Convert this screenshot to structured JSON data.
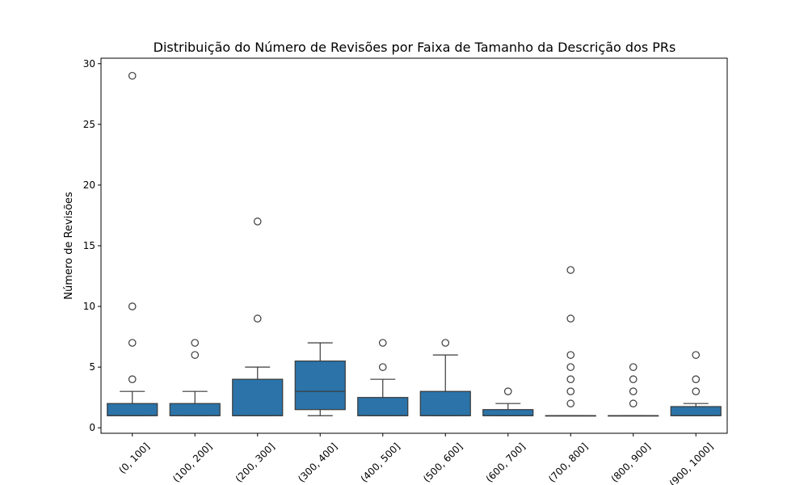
{
  "chart_data": {
    "type": "box",
    "title": "Distribuição do Número de Revisões por Faixa de Tamanho da Descrição dos PRs",
    "xlabel": "",
    "ylabel": "Número de Revisões",
    "ylim": [
      -0.45,
      30.45
    ],
    "yticks": [
      0,
      5,
      10,
      15,
      20,
      25,
      30
    ],
    "grid": false,
    "box_color": "#2b73a8",
    "line_color": "#3a3a3a",
    "categories": [
      "(0, 100]",
      "(100, 200]",
      "(200, 300]",
      "(300, 400]",
      "(400, 500]",
      "(500, 600]",
      "(600, 700]",
      "(700, 800]",
      "(800, 900]",
      "(900, 1000]"
    ],
    "boxes": [
      {
        "whisker_low": 1,
        "q1": 1,
        "median": 1,
        "q3": 2,
        "whisker_high": 3,
        "outliers": [
          4,
          7,
          10,
          29
        ]
      },
      {
        "whisker_low": 1,
        "q1": 1,
        "median": 1,
        "q3": 2,
        "whisker_high": 3,
        "outliers": [
          6,
          7
        ]
      },
      {
        "whisker_low": 1,
        "q1": 1,
        "median": 1,
        "q3": 4,
        "whisker_high": 5,
        "outliers": [
          9,
          17
        ]
      },
      {
        "whisker_low": 1,
        "q1": 1.5,
        "median": 3,
        "q3": 5.5,
        "whisker_high": 7,
        "outliers": []
      },
      {
        "whisker_low": 1,
        "q1": 1,
        "median": 1,
        "q3": 2.5,
        "whisker_high": 4,
        "outliers": [
          5,
          7
        ]
      },
      {
        "whisker_low": 1,
        "q1": 1,
        "median": 1,
        "q3": 3,
        "whisker_high": 6,
        "outliers": [
          7
        ]
      },
      {
        "whisker_low": 1,
        "q1": 1,
        "median": 1,
        "q3": 1.5,
        "whisker_high": 2,
        "outliers": [
          3
        ]
      },
      {
        "whisker_low": 1,
        "q1": 1,
        "median": 1,
        "q3": 1,
        "whisker_high": 1,
        "outliers": [
          2,
          3,
          4,
          5,
          6,
          9,
          13
        ]
      },
      {
        "whisker_low": 1,
        "q1": 1,
        "median": 1,
        "q3": 1,
        "whisker_high": 1,
        "outliers": [
          2,
          3,
          4,
          5
        ]
      },
      {
        "whisker_low": 1,
        "q1": 1,
        "median": 1,
        "q3": 1.75,
        "whisker_high": 2,
        "outliers": [
          3,
          4,
          6
        ]
      }
    ]
  }
}
